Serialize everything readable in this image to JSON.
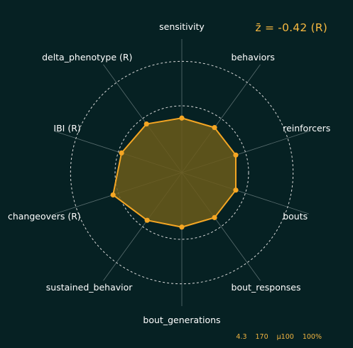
{
  "zscore_label": "z̄ = -0.42 (R)",
  "footer": {
    "v1": "4.3",
    "v2": "170",
    "v3": "µ100",
    "v4": "100%"
  },
  "colors": {
    "background": "#062123",
    "accent": "#f5a623",
    "fill": "#6b5a1a",
    "grid": "#5a6e70",
    "ring": "#d9d9d9"
  },
  "chart_data": {
    "type": "radar",
    "title": "",
    "axes": [
      "sensitivity",
      "behaviors",
      "reinforcers",
      "bouts",
      "bout_responses",
      "bout_generations",
      "sustained_behavior",
      "changeovers (R)",
      "IBI (R)",
      "delta_phenotype (R)"
    ],
    "series": [
      {
        "values": [
          -0.55,
          -0.5,
          -0.45,
          -0.45,
          -0.5,
          -0.55,
          -0.35,
          0.25,
          -0.15,
          -0.3
        ]
      }
    ],
    "reference_rings": [
      0,
      2
    ],
    "rlim": [
      -3,
      3
    ]
  }
}
